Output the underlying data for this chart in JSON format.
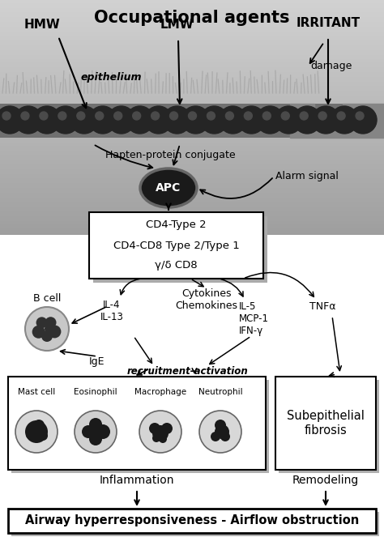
{
  "title": "Occupational agents",
  "epithelium_label": "epithelium",
  "hmw_label": "HMW",
  "lmw_label": "LMW",
  "irritant_label": "IRRITANT",
  "damage_label": "damage",
  "hapten_label": "Hapten-protein conjugate",
  "alarm_label": "Alarm signal",
  "apc_label": "APC",
  "tcell_box_lines": [
    "CD4-Type 2",
    "CD4-CD8 Type 2/Type 1",
    "γ/δ CD8"
  ],
  "bcell_label": "B cell",
  "cytokines_label": "Cytokines\nChemokines",
  "il4_il13": "IL-4\nIL-13",
  "il5_mcp_ifn": "IL-5\nMCP-1\nIFN-γ",
  "tnfa_label": "TNFα",
  "ige_label": "IgE",
  "recruitment_label": "recruitment-activation",
  "cell_labels": [
    "Mast cell",
    "Eosinophil",
    "Macrophage",
    "Neutrophil"
  ],
  "subep_label": "Subepithelial\nfibrosis",
  "inflammation_label": "Inflammation",
  "remodeling_label": "Remodeling",
  "final_label": "Airway hyperresponsiveness - Airflow obstruction"
}
